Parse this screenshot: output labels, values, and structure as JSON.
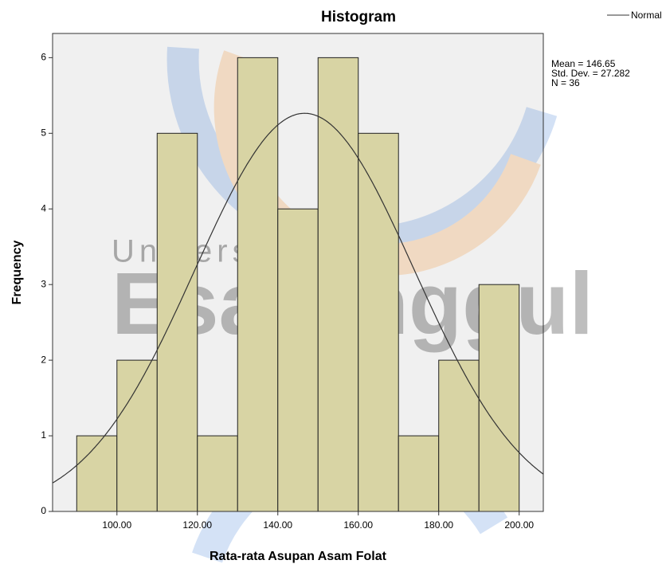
{
  "chart_data": {
    "type": "histogram",
    "title": "Histogram",
    "x_label": "Rata-rata Asupan Asam Folat",
    "y_label": "Frequency",
    "bins": [
      90,
      100,
      110,
      120,
      130,
      140,
      150,
      160,
      170,
      180,
      190,
      200
    ],
    "values": [
      1,
      2,
      5,
      1,
      6,
      4,
      6,
      5,
      1,
      2,
      3
    ],
    "color": "#d8d4a4",
    "edge_color": "#222222",
    "xlim": [
      84,
      206
    ],
    "xticks": [
      {
        "value": 100,
        "label": "100.00"
      },
      {
        "value": 120,
        "label": "120.00"
      },
      {
        "value": 140,
        "label": "140.00"
      },
      {
        "value": 160,
        "label": "160.00"
      },
      {
        "value": 180,
        "label": "180.00"
      },
      {
        "value": 200,
        "label": "200.00"
      }
    ],
    "ylim": [
      0,
      6.32
    ],
    "yticks": [
      0,
      1,
      2,
      3,
      4,
      5,
      6
    ],
    "normal_curve": {
      "name": "Normal",
      "mean": 146.65,
      "sd": 27.282,
      "n": 36
    },
    "annotations": [
      "Mean = 146.65",
      "Std. Dev. = 27.282",
      "N = 36"
    ],
    "watermark": [
      "Universitas",
      "Esa Unggul"
    ]
  }
}
